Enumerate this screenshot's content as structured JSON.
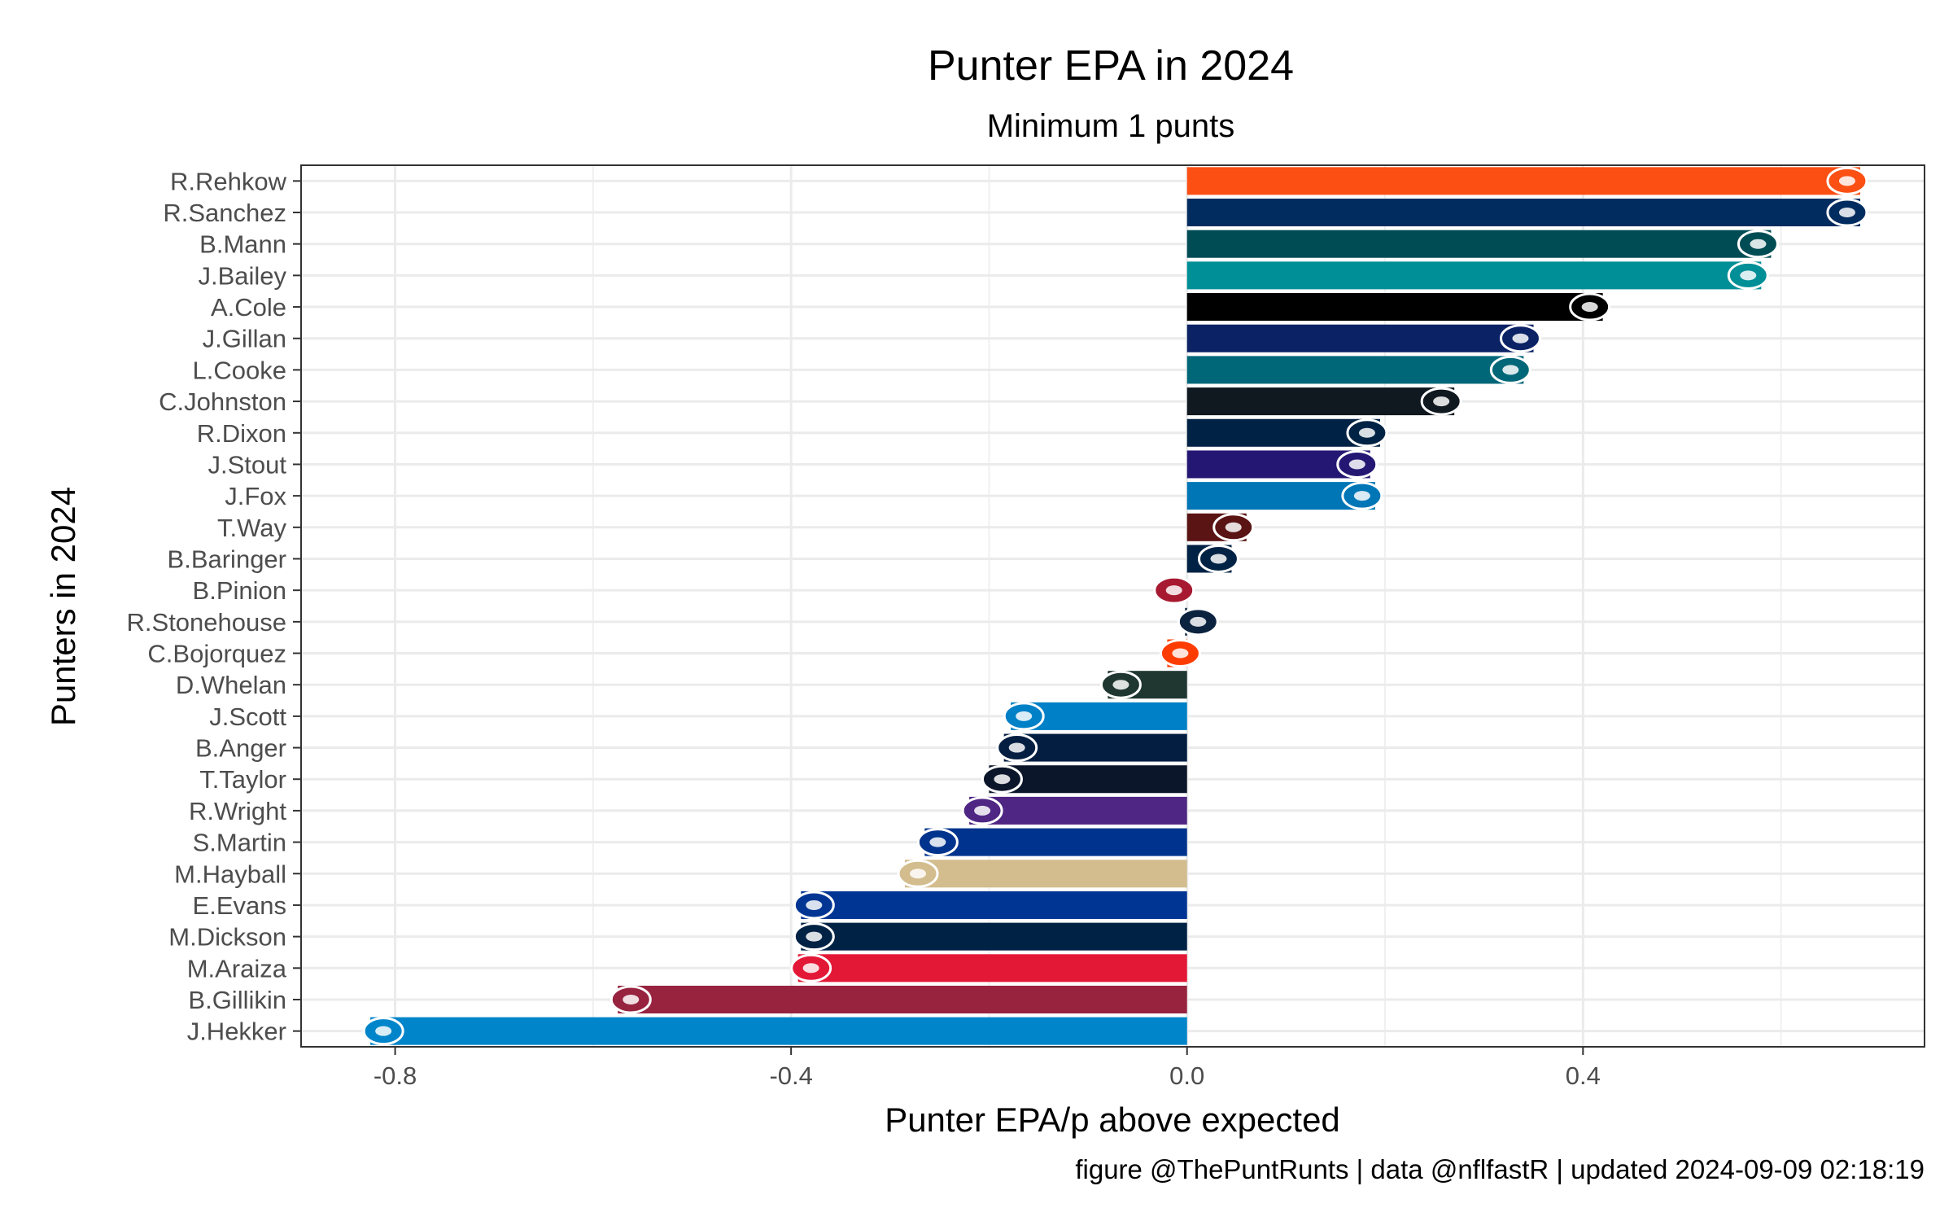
{
  "chart_data": {
    "type": "bar",
    "orientation": "horizontal",
    "title": "Punter EPA in 2024",
    "subtitle": "Minimum 1 punts",
    "xlabel": "Punter EPA/p above expected",
    "ylabel": "Punters in 2024",
    "caption": "figure @ThePuntRunts | data @nflfastR | updated 2024-09-09 02:18:19",
    "xlim": [
      -0.895,
      0.745
    ],
    "xticks": [
      {
        "value": -0.8,
        "label": "-0.8"
      },
      {
        "value": -0.4,
        "label": "-0.4"
      },
      {
        "value": 0.0,
        "label": "0.0"
      },
      {
        "value": 0.4,
        "label": "0.4"
      }
    ],
    "grid": true,
    "bars": [
      {
        "name": "R.Rehkow",
        "value": 0.68,
        "color": "#FB4F14",
        "team_icon": "bengals-logo-icon"
      },
      {
        "name": "R.Sanchez",
        "value": 0.68,
        "color": "#002C5F",
        "team_icon": "colts-logo-icon"
      },
      {
        "name": "B.Mann",
        "value": 0.59,
        "color": "#004C54",
        "team_icon": "eagles-logo-icon"
      },
      {
        "name": "J.Bailey",
        "value": 0.58,
        "color": "#008E97",
        "team_icon": "dolphins-logo-icon"
      },
      {
        "name": "A.Cole",
        "value": 0.42,
        "color": "#000000",
        "team_icon": "raiders-logo-icon"
      },
      {
        "name": "J.Gillan",
        "value": 0.35,
        "color": "#0B2265",
        "team_icon": "giants-logo-icon"
      },
      {
        "name": "L.Cooke",
        "value": 0.34,
        "color": "#006778",
        "team_icon": "jaguars-logo-icon"
      },
      {
        "name": "C.Johnston",
        "value": 0.27,
        "color": "#101820",
        "team_icon": "steelers-logo-icon"
      },
      {
        "name": "R.Dixon",
        "value": 0.195,
        "color": "#002244",
        "team_icon": "broncos-logo-icon"
      },
      {
        "name": "J.Stout",
        "value": 0.185,
        "color": "#241773",
        "team_icon": "ravens-logo-icon"
      },
      {
        "name": "J.Fox",
        "value": 0.19,
        "color": "#0076B6",
        "team_icon": "lions-logo-icon"
      },
      {
        "name": "T.Way",
        "value": 0.06,
        "color": "#5A1414",
        "team_icon": "commanders-logo-icon"
      },
      {
        "name": "B.Baringer",
        "value": 0.045,
        "color": "#002244",
        "team_icon": "patriots-logo-icon"
      },
      {
        "name": "B.Pinion",
        "value": 0.0,
        "color": "#A71930",
        "team_icon": "falcons-logo-icon"
      },
      {
        "name": "R.Stonehouse",
        "value": -0.002,
        "color": "#0C2340",
        "team_icon": "titans-logo-icon"
      },
      {
        "name": "C.Bojorquez",
        "value": -0.02,
        "color": "#FF3C00",
        "team_icon": "browns-logo-icon"
      },
      {
        "name": "D.Whelan",
        "value": -0.08,
        "color": "#203731",
        "team_icon": "packers-logo-icon"
      },
      {
        "name": "J.Scott",
        "value": -0.178,
        "color": "#0080C6",
        "team_icon": "chargers-logo-icon"
      },
      {
        "name": "B.Anger",
        "value": -0.185,
        "color": "#041E42",
        "team_icon": "cowboys-logo-icon"
      },
      {
        "name": "T.Taylor",
        "value": -0.2,
        "color": "#0B162A",
        "team_icon": "bears-logo-icon"
      },
      {
        "name": "R.Wright",
        "value": -0.22,
        "color": "#4F2683",
        "team_icon": "vikings-logo-icon"
      },
      {
        "name": "S.Martin",
        "value": -0.265,
        "color": "#00338D",
        "team_icon": "bills-logo-icon"
      },
      {
        "name": "M.Hayball",
        "value": -0.285,
        "color": "#D3BC8D",
        "team_icon": "saints-logo-icon"
      },
      {
        "name": "E.Evans",
        "value": -0.39,
        "color": "#003594",
        "team_icon": "rams-logo-icon"
      },
      {
        "name": "M.Dickson",
        "value": -0.39,
        "color": "#002244",
        "team_icon": "seahawks-logo-icon"
      },
      {
        "name": "M.Araiza",
        "value": -0.393,
        "color": "#E31837",
        "team_icon": "chiefs-logo-icon"
      },
      {
        "name": "B.Gillikin",
        "value": -0.575,
        "color": "#97233F",
        "team_icon": "cardinals-logo-icon"
      },
      {
        "name": "J.Hekker",
        "value": -0.825,
        "color": "#0085CA",
        "team_icon": "panthers-logo-icon"
      }
    ]
  }
}
